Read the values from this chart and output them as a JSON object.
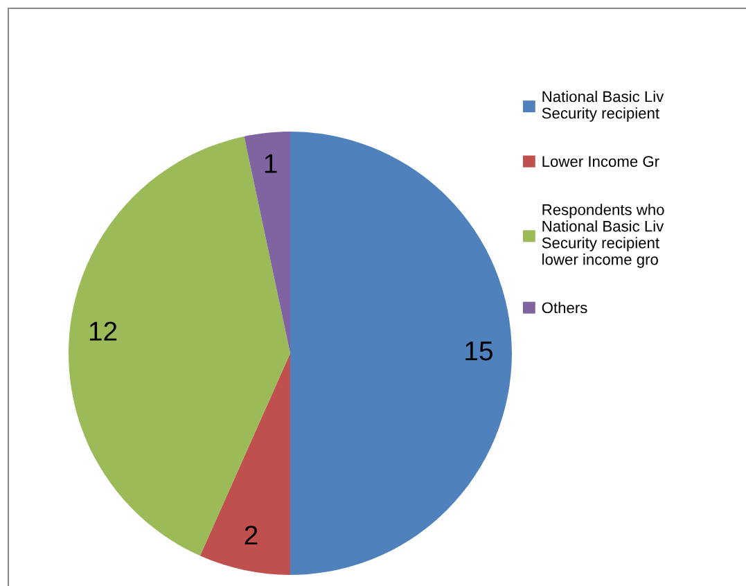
{
  "chart_data": {
    "type": "pie",
    "categories": [
      "National Basic Liv\nSecurity recipient",
      "Lower Income Gr",
      "Respondents who\nNational Basic Liv\nSecurity recipient\nlower income gro",
      "Others"
    ],
    "values": [
      15,
      2,
      12,
      1
    ],
    "colors": [
      "#4f81bd",
      "#c0504d",
      "#9bbb59",
      "#8064a2"
    ],
    "data_labels": true,
    "legend": "right"
  }
}
